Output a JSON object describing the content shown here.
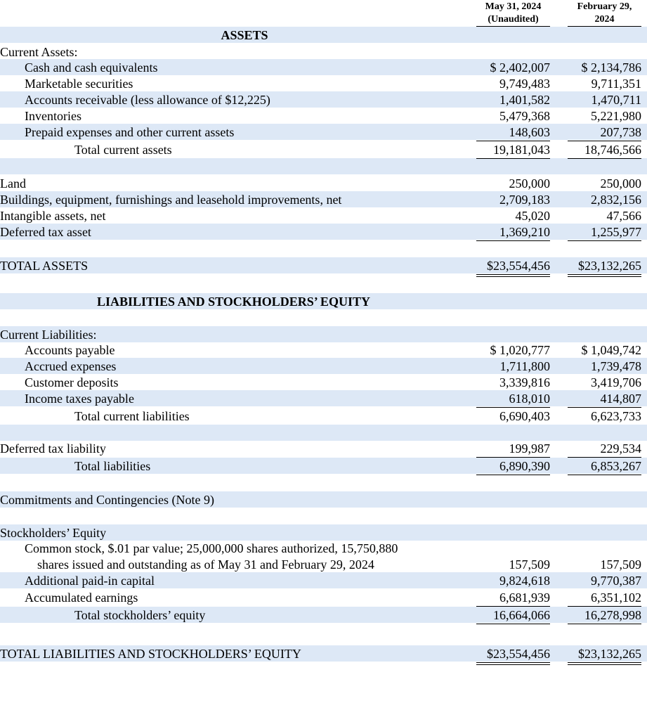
{
  "header": {
    "columns": [
      {
        "line1": "May 31, 2024",
        "line2": "(Unaudited)"
      },
      {
        "line1": "February 29,",
        "line2": "2024"
      }
    ]
  },
  "rows": [
    {
      "label": "ASSETS"
    },
    {
      "label": "Current Assets:"
    },
    {
      "label": "Cash and cash equivalents",
      "values": [
        "$ 2,402,007",
        "$ 2,134,786"
      ]
    },
    {
      "label": "Marketable securities",
      "values": [
        "9,749,483",
        "9,711,351"
      ]
    },
    {
      "label": "Accounts receivable (less allowance of $12,225)",
      "values": [
        "1,401,582",
        "1,470,711"
      ]
    },
    {
      "label": "Inventories",
      "values": [
        "5,479,368",
        "5,221,980"
      ]
    },
    {
      "label": "Prepaid expenses and other current assets",
      "values": [
        "148,603",
        "207,738"
      ]
    },
    {
      "label": "Total current assets",
      "values": [
        "19,181,043",
        "18,746,566"
      ]
    },
    {
      "label": "Land",
      "values": [
        "250,000",
        "250,000"
      ]
    },
    {
      "label": "Buildings, equipment, furnishings and leasehold improvements, net",
      "values": [
        "2,709,183",
        "2,832,156"
      ]
    },
    {
      "label": "Intangible assets, net",
      "values": [
        "45,020",
        "47,566"
      ]
    },
    {
      "label": "Deferred tax asset",
      "values": [
        "1,369,210",
        "1,255,977"
      ]
    },
    {
      "label": "TOTAL ASSETS",
      "values": [
        "$23,554,456",
        "$23,132,265"
      ]
    },
    {
      "label": "LIABILITIES AND STOCKHOLDERS’ EQUITY"
    },
    {
      "label": "Current Liabilities:"
    },
    {
      "label": "Accounts payable",
      "values": [
        "$ 1,020,777",
        "$ 1,049,742"
      ]
    },
    {
      "label": "Accrued expenses",
      "values": [
        "1,711,800",
        "1,739,478"
      ]
    },
    {
      "label": "Customer deposits",
      "values": [
        "3,339,816",
        "3,419,706"
      ]
    },
    {
      "label": "Income taxes payable",
      "values": [
        "618,010",
        "414,807"
      ]
    },
    {
      "label": "Total current liabilities",
      "values": [
        "6,690,403",
        "6,623,733"
      ]
    },
    {
      "label": "Deferred tax liability",
      "values": [
        "199,987",
        "229,534"
      ]
    },
    {
      "label": "Total liabilities",
      "values": [
        "6,890,390",
        "6,853,267"
      ]
    },
    {
      "label": "Commitments and Contingencies (Note 9)"
    },
    {
      "label": "Stockholders’ Equity"
    },
    {
      "label": "Common stock, $.01 par value; 25,000,000 shares authorized, 15,750,880",
      "label_2": "shares issued and outstanding as of May 31 and February 29, 2024",
      "values": [
        "157,509",
        "157,509"
      ]
    },
    {
      "label": "Additional paid-in capital",
      "values": [
        "9,824,618",
        "9,770,387"
      ]
    },
    {
      "label": "Accumulated earnings",
      "values": [
        "6,681,939",
        "6,351,102"
      ]
    },
    {
      "label": "Total stockholders’ equity",
      "values": [
        "16,664,066",
        "16,278,998"
      ]
    },
    {
      "label": "TOTAL LIABILITIES AND STOCKHOLDERS’ EQUITY",
      "values": [
        "$23,554,456",
        "$23,132,265"
      ]
    }
  ]
}
